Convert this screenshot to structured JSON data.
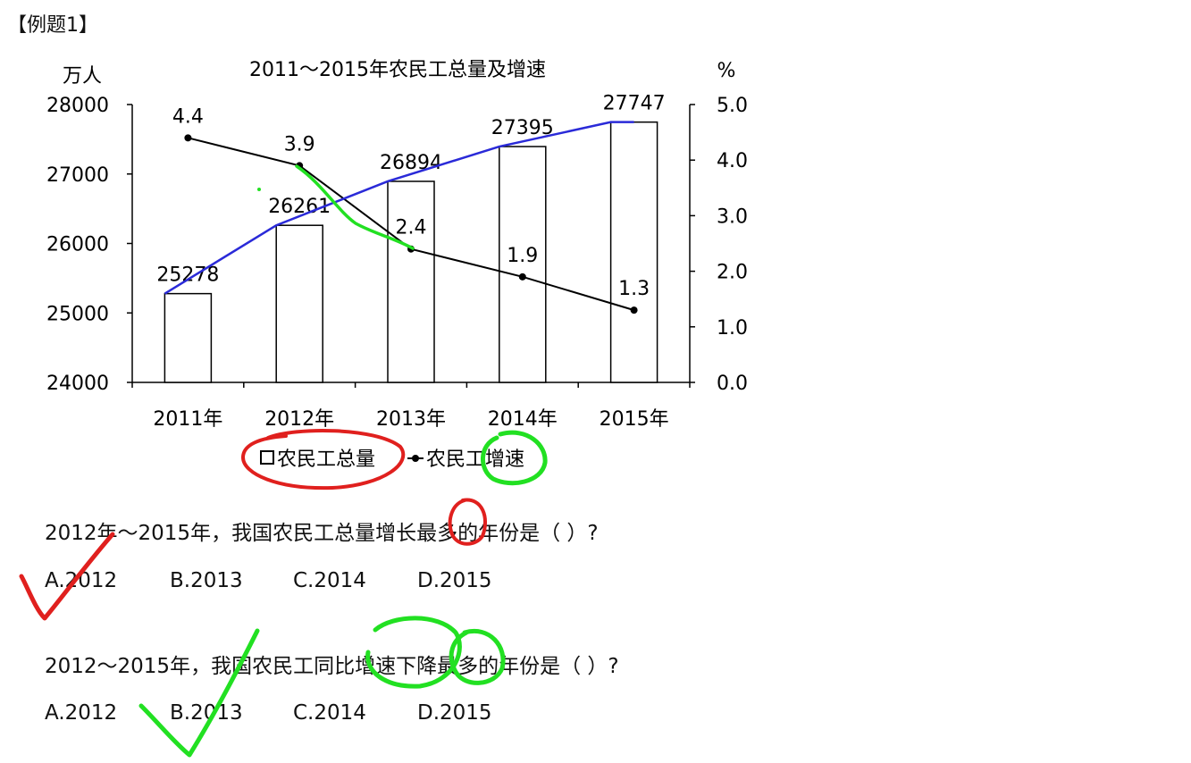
{
  "header": {
    "tag": "【例题1】"
  },
  "chart_data": {
    "type": "bar",
    "title": "2011～2015年农民工总量及增速",
    "left_unit": "万人",
    "right_unit": "%",
    "categories": [
      "2011年",
      "2012年",
      "2013年",
      "2014年",
      "2015年"
    ],
    "series": [
      {
        "name": "农民工总量",
        "type": "bar",
        "axis": "left",
        "values": [
          25278,
          26261,
          26894,
          27395,
          27747
        ]
      },
      {
        "name": "农民工增速",
        "type": "line",
        "axis": "right",
        "values": [
          4.4,
          3.9,
          2.4,
          1.9,
          1.3
        ]
      }
    ],
    "left_axis": {
      "ylim": [
        24000,
        28000
      ],
      "ticks": [
        "24000",
        "25000",
        "26000",
        "27000",
        "28000"
      ]
    },
    "right_axis": {
      "ylim": [
        0,
        5
      ],
      "ticks": [
        "0.0",
        "1.0",
        "2.0",
        "3.0",
        "4.0",
        "5.0"
      ]
    },
    "bar_labels": [
      "25278",
      "26261",
      "26894",
      "27395",
      "27747"
    ],
    "line_labels": [
      "4.4",
      "3.9",
      "2.4",
      "1.9",
      "1.3"
    ],
    "legend_position": "bottom",
    "grid": false
  },
  "questions": [
    {
      "text": "2012年～2015年，我国农民工总量增长最多的年份是（  ）?",
      "options": [
        "A.2012",
        "B.2013",
        "C.2014",
        "D.2015"
      ]
    },
    {
      "text": "2012～2015年，我国农民工同比增速下降最多的年份是（  ）?",
      "options": [
        "A.2012",
        "B.2013",
        "C.2014",
        "D.2015"
      ]
    }
  ],
  "colors": {
    "red_ink": "#e0201e",
    "green_ink": "#22e022",
    "blue_ink": "#2a2ad8",
    "line": "#000000"
  }
}
